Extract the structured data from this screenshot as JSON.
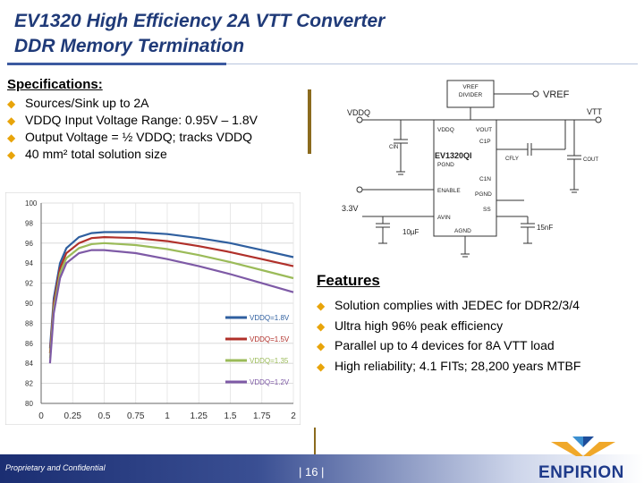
{
  "slide": {
    "title_line1": "EV1320  High Efficiency 2A VTT Converter",
    "title_line2": "DDR Memory Termination"
  },
  "specs": {
    "heading": "Specifications:",
    "items": [
      "Sources/Sink up to 2A",
      "VDDQ Input Voltage Range: 0.95V – 1.8V",
      "Output Voltage = ½ VDDQ; tracks VDDQ",
      "40 mm² total solution size"
    ]
  },
  "schematic": {
    "chip_name": "EV1320QI",
    "pins_left": [
      "VDDQ",
      "PGND",
      "ENABLE",
      "AVIN"
    ],
    "pins_right": [
      "VOUT",
      "C1P",
      "C1N",
      "PGND",
      "SS"
    ],
    "pin_bottom": "AGND",
    "divider_label": "VREF DIVIDER",
    "vref_label": "VREF",
    "vddq_label": "VDDQ",
    "vtt_label": "VTT",
    "v33_label": "3.3V",
    "cin_label": "CIN",
    "cfly_label": "CFLY",
    "cout_label": "COUT",
    "cap1_label": "10µF",
    "cap2_label": "15nF"
  },
  "chart_data": {
    "type": "line",
    "title": "",
    "xlabel": "",
    "ylabel": "",
    "x_ticks": [
      "0",
      "0.25",
      "0.5",
      "0.75",
      "1",
      "1.25",
      "1.5",
      "1.75",
      "2"
    ],
    "y_ticks": [
      "80",
      "82",
      "84",
      "86",
      "88",
      "90",
      "92",
      "94",
      "96",
      "98",
      "100"
    ],
    "xlim": [
      0,
      2
    ],
    "ylim": [
      80,
      100
    ],
    "series": [
      {
        "name": "VDDQ=1.8V",
        "color": "#2f5f9f",
        "values": [
          [
            0.07,
            85.5
          ],
          [
            0.1,
            90.5
          ],
          [
            0.15,
            94
          ],
          [
            0.2,
            95.5
          ],
          [
            0.3,
            96.6
          ],
          [
            0.4,
            97
          ],
          [
            0.5,
            97.1
          ],
          [
            0.75,
            97.1
          ],
          [
            1,
            96.9
          ],
          [
            1.25,
            96.5
          ],
          [
            1.5,
            96
          ],
          [
            1.75,
            95.3
          ],
          [
            2,
            94.6
          ]
        ]
      },
      {
        "name": "VDDQ=1.5V",
        "color": "#b0302a",
        "values": [
          [
            0.07,
            85
          ],
          [
            0.1,
            90
          ],
          [
            0.15,
            93.5
          ],
          [
            0.2,
            95
          ],
          [
            0.3,
            96
          ],
          [
            0.4,
            96.5
          ],
          [
            0.5,
            96.6
          ],
          [
            0.75,
            96.5
          ],
          [
            1,
            96.2
          ],
          [
            1.25,
            95.7
          ],
          [
            1.5,
            95.1
          ],
          [
            1.75,
            94.4
          ],
          [
            2,
            93.7
          ]
        ]
      },
      {
        "name": "VDDQ=1.35",
        "color": "#9bbb59",
        "values": [
          [
            0.07,
            84.5
          ],
          [
            0.1,
            89.5
          ],
          [
            0.15,
            93
          ],
          [
            0.2,
            94.5
          ],
          [
            0.3,
            95.5
          ],
          [
            0.4,
            95.9
          ],
          [
            0.5,
            96
          ],
          [
            0.75,
            95.8
          ],
          [
            1,
            95.4
          ],
          [
            1.25,
            94.8
          ],
          [
            1.5,
            94.1
          ],
          [
            1.75,
            93.3
          ],
          [
            2,
            92.5
          ]
        ]
      },
      {
        "name": "VDDQ=1.2V",
        "color": "#7e5aa6",
        "values": [
          [
            0.07,
            84
          ],
          [
            0.1,
            89
          ],
          [
            0.15,
            92.5
          ],
          [
            0.2,
            94
          ],
          [
            0.3,
            95
          ],
          [
            0.4,
            95.3
          ],
          [
            0.5,
            95.3
          ],
          [
            0.75,
            95
          ],
          [
            1,
            94.4
          ],
          [
            1.25,
            93.7
          ],
          [
            1.5,
            92.9
          ],
          [
            1.75,
            92
          ],
          [
            2,
            91.1
          ]
        ]
      }
    ]
  },
  "features": {
    "heading": "Features",
    "items": [
      "Solution complies with JEDEC for DDR2/3/4",
      "Ultra high 96% peak efficiency",
      "Parallel up to 4 devices for 8A VTT load",
      "High reliability; 4.1 FITs; 28,200 years MTBF"
    ]
  },
  "footer": {
    "confidential": "Proprietary and Confidential",
    "page": "| 16 |",
    "logo_text": "ENPIRION"
  },
  "colors": {
    "title": "#1f3a78",
    "bullet": "#e8a40a",
    "footer": "#1b2e72"
  }
}
